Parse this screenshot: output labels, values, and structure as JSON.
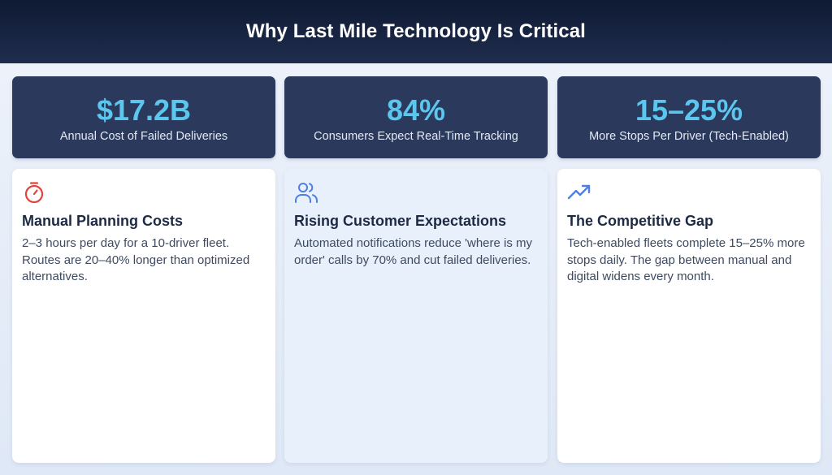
{
  "header": {
    "title": "Why Last Mile Technology Is Critical"
  },
  "stats": [
    {
      "value": "$17.2B",
      "label": "Annual Cost of Failed Deliveries"
    },
    {
      "value": "84%",
      "label": "Consumers Expect Real-Time Tracking"
    },
    {
      "value": "15–25%",
      "label": "More Stops Per Driver (Tech-Enabled)"
    }
  ],
  "cards": [
    {
      "icon": "stopwatch-icon",
      "title": "Manual Planning Costs",
      "body": "2–3 hours per day for a 10-driver fleet. Routes are 20–40% longer than optimized alternatives."
    },
    {
      "icon": "users-icon",
      "title": "Rising Customer Expectations",
      "body": "Automated notifications reduce 'where is my order' calls by 70% and cut failed deliveries."
    },
    {
      "icon": "trending-up-icon",
      "title": "The Competitive Gap",
      "body": "Tech-enabled fleets complete 15–25% more stops daily. The gap between manual and digital widens every month."
    }
  ],
  "colors": {
    "header_bg": "#16213d",
    "stat_bg": "#2b3a5c",
    "stat_value": "#5cc7ee",
    "accent_red": "#e0443a",
    "accent_blue": "#4f7fe0"
  }
}
